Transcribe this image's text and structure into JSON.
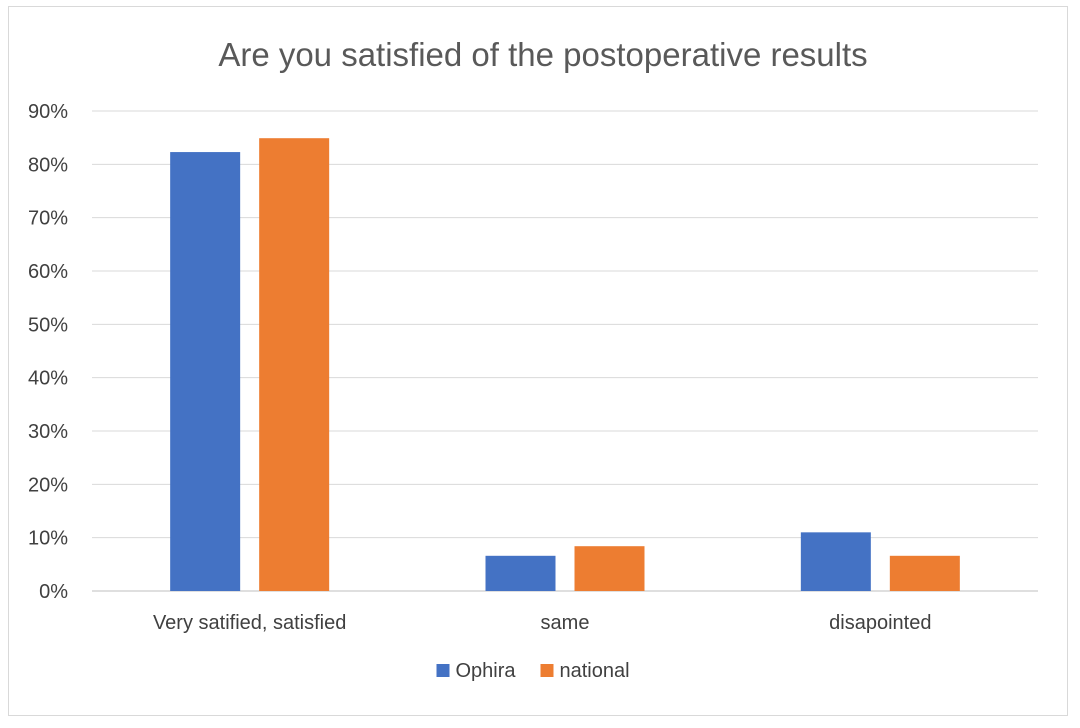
{
  "chart_data": {
    "type": "bar",
    "title": "Are you satisfied of the postoperative results",
    "categories": [
      "Very satified, satisfied",
      "same",
      "disapointed"
    ],
    "series": [
      {
        "name": "Ophira",
        "color": "#4472C4",
        "values": [
          82.3,
          6.6,
          11.0
        ]
      },
      {
        "name": "national",
        "color": "#ED7D31",
        "values": [
          84.9,
          8.4,
          6.6
        ]
      }
    ],
    "ylim": [
      0,
      90
    ],
    "yticks": [
      "0%",
      "10%",
      "20%",
      "30%",
      "40%",
      "50%",
      "60%",
      "70%",
      "80%",
      "90%"
    ],
    "grid": true,
    "legend": "bottom"
  }
}
